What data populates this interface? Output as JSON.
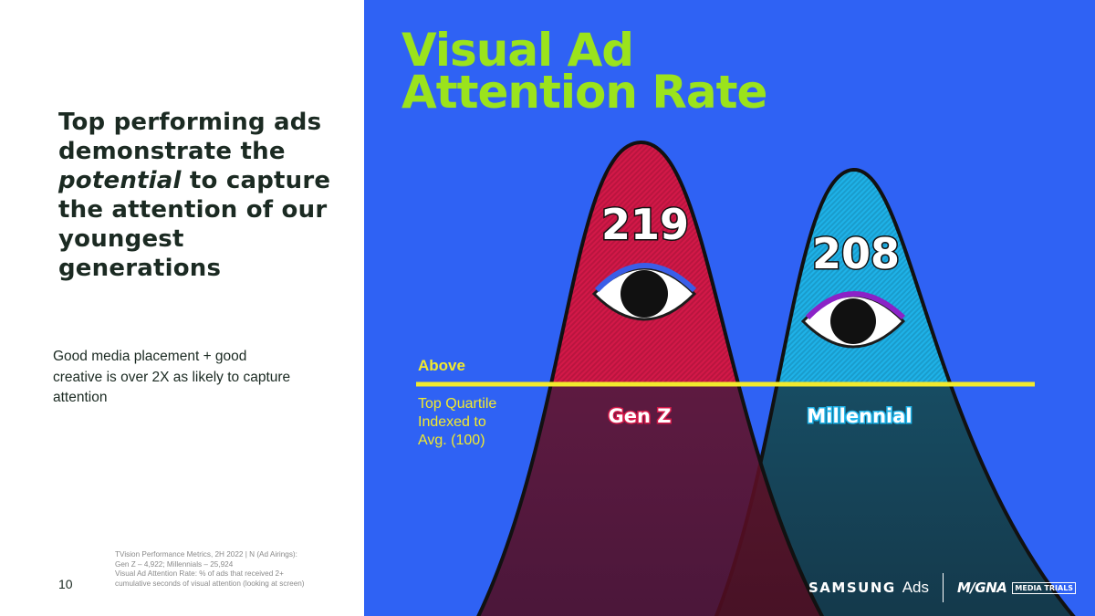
{
  "headline": {
    "before": "Top performing ads demonstrate the ",
    "emphasis": "potential",
    "after": " to capture the attention of our youngest generations"
  },
  "subtext": "Good media placement + good creative is over 2X as likely to capture attention",
  "page_number": "10",
  "source_note": {
    "line1": "TVision Performance Metrics, 2H 2022  | N (Ad Airings):",
    "line2": "Gen Z – 4,922;  Millennials – 25,924",
    "line3": "Visual Ad Attention Rate: % of ads that received 2+",
    "line4": "cumulative seconds of visual attention (looking at screen)"
  },
  "chart": {
    "title_line1": "Visual Ad",
    "title_line2": "Attention Rate",
    "above_label": "Above",
    "quartile_line1": "Top Quartile",
    "quartile_line2": "Indexed to",
    "quartile_line3": "Avg. (100)",
    "colors": {
      "background": "#2f62f4",
      "title": "#9be31c",
      "threshold": "#f2ea2d",
      "gen_z": "#d31848",
      "millennial": "#1eb2e8"
    },
    "icons": [
      "eye-icon",
      "eye-icon"
    ]
  },
  "chart_data": {
    "type": "area",
    "title": "Visual Ad Attention Rate",
    "baseline_value": 100,
    "series": [
      {
        "name": "Gen Z",
        "value": 219,
        "color": "#d31848"
      },
      {
        "name": "Millennial",
        "value": 208,
        "color": "#1eb2e8"
      }
    ]
  },
  "footer": {
    "samsung": "SAMSUNG",
    "ads": "Ads",
    "magna": "M/GNA",
    "mediatrials": "MEDIA TRIALS"
  }
}
